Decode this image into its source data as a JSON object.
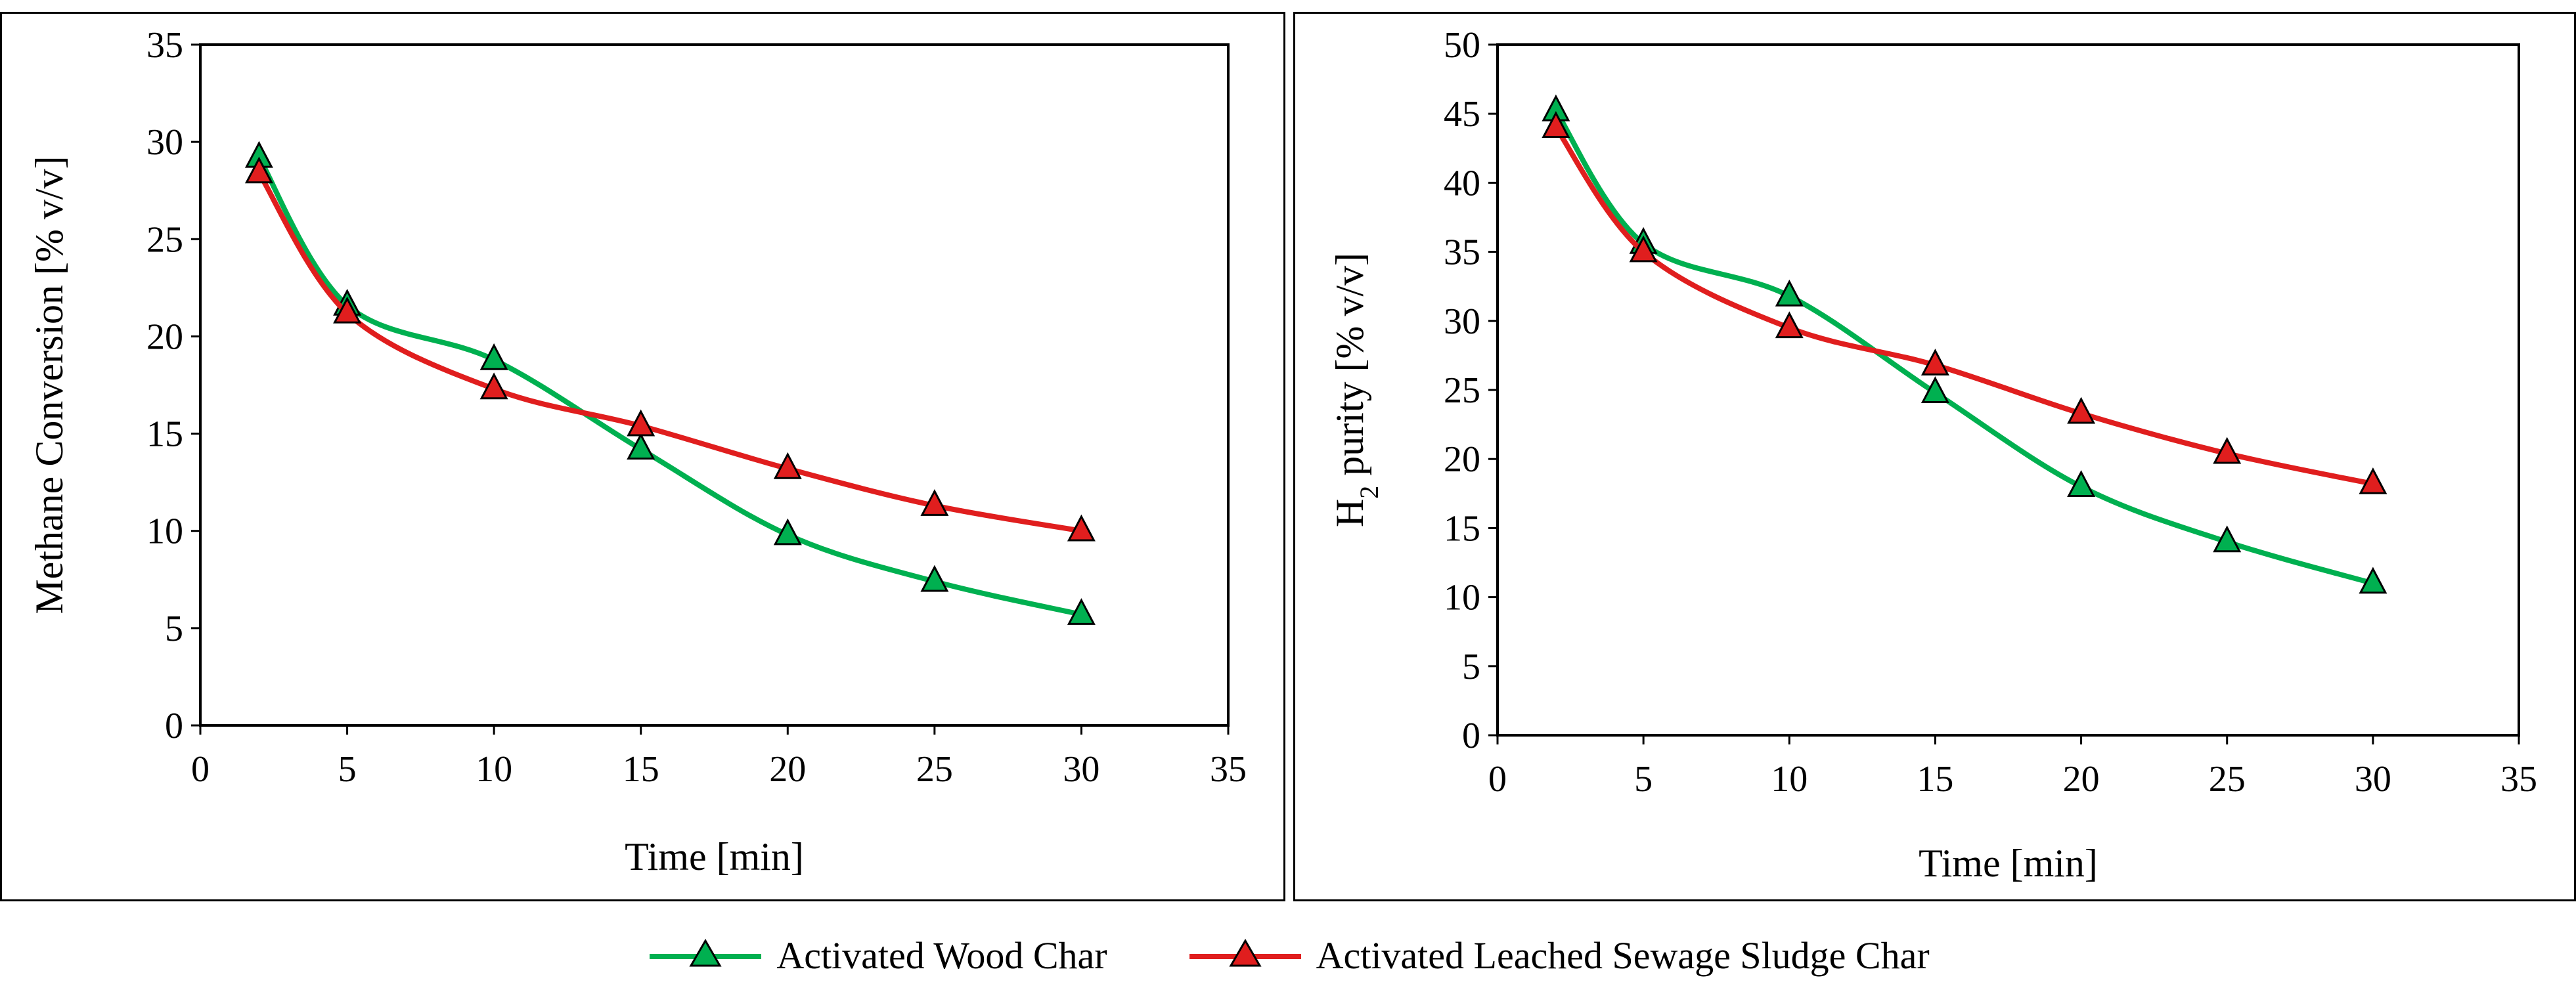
{
  "series_style": {
    "wood": {
      "color": "#00b050"
    },
    "sludge": {
      "color": "#e01e1e"
    },
    "marker": "triangle"
  },
  "legend": {
    "placement": "bottom-center",
    "items": [
      {
        "label": "Activated Wood Char",
        "series": "wood"
      },
      {
        "label": "Activated Leached Sewage Sludge Char",
        "series": "sludge"
      }
    ]
  },
  "chart_data": [
    {
      "type": "line",
      "title": "",
      "xlabel": "Time [min]",
      "ylabel": "Methane Conversion  [%  v/v]",
      "xlim": [
        0,
        35
      ],
      "ylim": [
        0,
        35
      ],
      "xticks": [
        0,
        5,
        10,
        15,
        20,
        25,
        30,
        35
      ],
      "yticks": [
        0,
        5,
        10,
        15,
        20,
        25,
        30,
        35
      ],
      "grid": false,
      "series": [
        {
          "name": "Activated Wood Char",
          "key": "wood",
          "x": [
            2,
            5,
            10,
            15,
            20,
            25,
            30
          ],
          "y": [
            29.2,
            21.6,
            18.8,
            14.2,
            9.8,
            7.4,
            5.7
          ]
        },
        {
          "name": "Activated Leached Sewage Sludge Char",
          "key": "sludge",
          "x": [
            2,
            5,
            10,
            15,
            20,
            25,
            30
          ],
          "y": [
            28.4,
            21.2,
            17.3,
            15.4,
            13.2,
            11.3,
            10.0
          ]
        }
      ]
    },
    {
      "type": "line",
      "title": "",
      "xlabel": "Time [min]",
      "ylabel_main": "H",
      "ylabel_sub": "2",
      "ylabel_rest": " purity [%  v/v]",
      "xlim": [
        0,
        35
      ],
      "ylim": [
        0,
        50
      ],
      "xticks": [
        0,
        5,
        10,
        15,
        20,
        25,
        30,
        35
      ],
      "yticks": [
        0,
        5,
        10,
        15,
        20,
        25,
        30,
        35,
        40,
        45,
        50
      ],
      "grid": false,
      "series": [
        {
          "name": "Activated Wood Char",
          "key": "wood",
          "x": [
            2,
            5,
            10,
            15,
            20,
            25,
            30
          ],
          "y": [
            45.2,
            35.6,
            31.8,
            24.8,
            18.0,
            14.0,
            11.0
          ]
        },
        {
          "name": "Activated Leached Sewage Sludge Char",
          "key": "sludge",
          "x": [
            2,
            5,
            10,
            15,
            20,
            25,
            30
          ],
          "y": [
            44.0,
            35.0,
            29.5,
            26.8,
            23.3,
            20.4,
            18.2
          ]
        }
      ]
    }
  ]
}
